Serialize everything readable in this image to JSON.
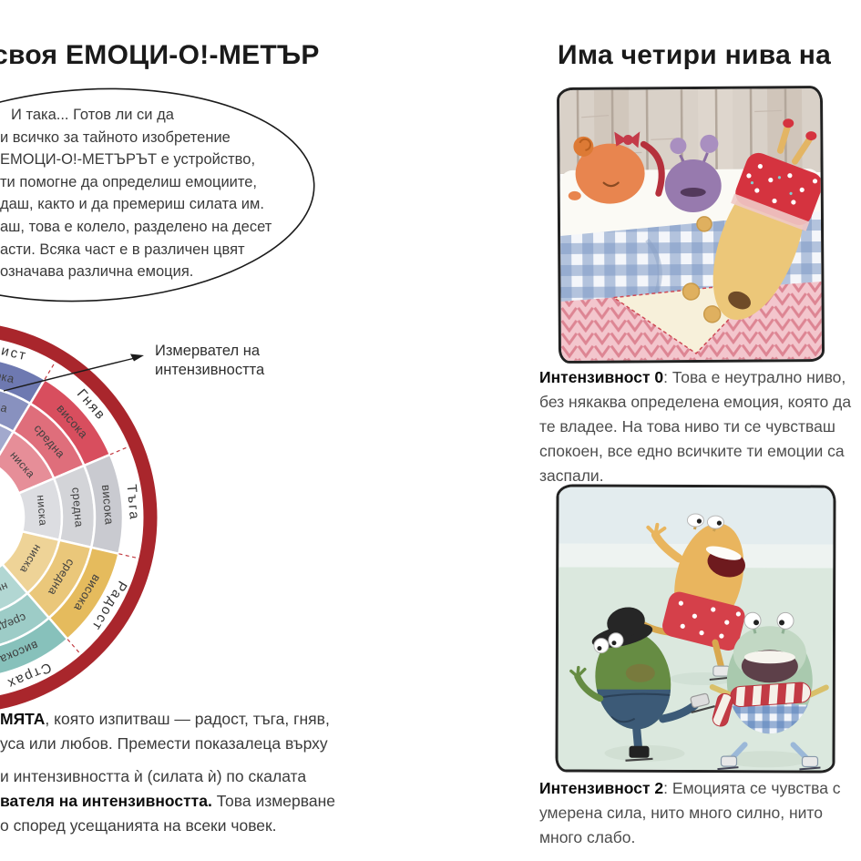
{
  "left_page": {
    "title": "своя ЕМОЦИ-О!-МЕТЪР",
    "speech_bubble_lines": [
      "И така... Готов ли си да",
      "и всичко за тайното изобретение",
      "ЕМОЦИ-О!-МЕТЪРЪТ е устройство,",
      "ти помогне да определиш емоциите,",
      "даш, както и да премериш силата им.",
      "аш, това е колело, разделено на десет",
      "асти. Всяка част е в различен цвят",
      "означава различна емоция."
    ],
    "wheel": {
      "pointer_label_line1": "Измервател на",
      "pointer_label_line2": "интензивността",
      "rim_color": "#a9262c",
      "divider_color": "#c23b42",
      "bands": [
        "ниска",
        "средна",
        "висока"
      ],
      "sectors": [
        {
          "name": "Завист",
          "color": "#6e79b1"
        },
        {
          "name": "Гняв",
          "color": "#d84e5e"
        },
        {
          "name": "Тъга",
          "color": "#c9cad0"
        },
        {
          "name": "Радост",
          "color": "#e5bb5d"
        },
        {
          "name": "Страх",
          "color": "#87c1bb"
        }
      ]
    },
    "para1_bold": "МЯТА",
    "para1_rest": ", която изпитваш — радост, тъга, гняв,",
    "para1_line2": "уса или любов. Премести показалеца върху",
    "para2_line1": "и интензивността ѝ (силата ѝ) по скалата",
    "para2_bold": "вателя на интензивността.",
    "para2_rest": " Това измерване",
    "para2_line3": "о според усещанията на всеки човек."
  },
  "right_page": {
    "title": "Има четири нива на",
    "figure1": {
      "caption_bold": "Интензивност 0",
      "caption_text": ": Това е неутрално ниво, без някаква определена емоция, която да те владее. На това ниво ти се чувстваш спокоен, все едно всичките ти емоции са заспали."
    },
    "figure2": {
      "caption_bold": "Интензивност 2",
      "caption_text": ": Емоцията се чувства с умерена сила, нито много силно, нито много слабо."
    }
  }
}
